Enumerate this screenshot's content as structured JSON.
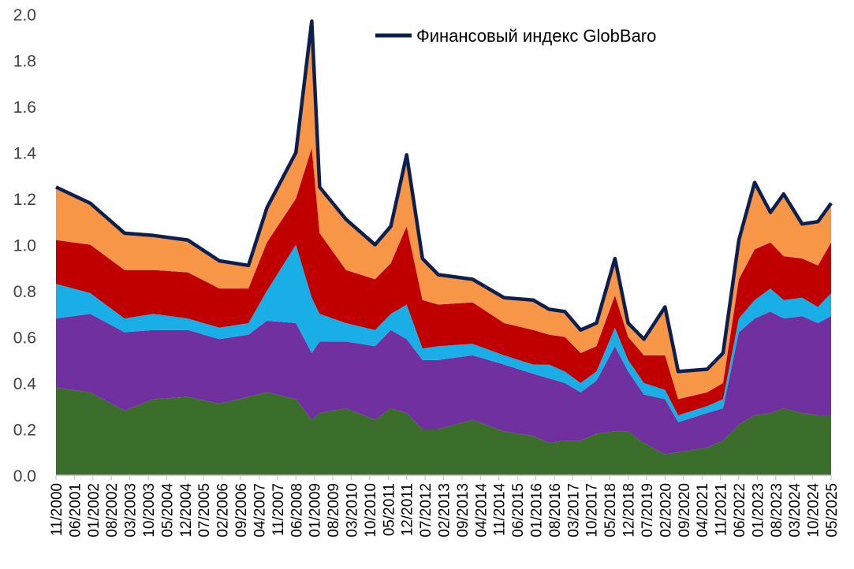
{
  "chart_data": {
    "type": "area",
    "title": "",
    "xlabel": "",
    "ylabel": "",
    "ylim": [
      0,
      2.0
    ],
    "yticks": [
      "0.0",
      "0.2",
      "0.4",
      "0.6",
      "0.8",
      "1.0",
      "1.2",
      "1.4",
      "1.6",
      "1.8",
      "2.0"
    ],
    "xticks": [
      "11/2000",
      "06/2001",
      "01/2002",
      "08/2002",
      "03/2003",
      "10/2003",
      "05/2004",
      "12/2004",
      "07/2005",
      "02/2006",
      "09/2006",
      "04/2007",
      "11/2007",
      "06/2008",
      "01/2009",
      "08/2009",
      "03/2010",
      "10/2010",
      "05/2011",
      "12/2011",
      "07/2012",
      "02/2013",
      "09/2013",
      "04/2014",
      "11/2014",
      "06/2015",
      "01/2016",
      "08/2016",
      "03/2017",
      "10/2017",
      "05/2018",
      "12/2018",
      "07/2019",
      "02/2020",
      "09/2020",
      "04/2021",
      "11/2021",
      "06/2022",
      "01/2023",
      "08/2023",
      "03/2024",
      "10/2024",
      "05/2025"
    ],
    "x_date_range": [
      "11/2000",
      "05/2025"
    ],
    "stack_colors": [
      "#3a6e2a",
      "#7030a0",
      "#1aaee6",
      "#c00000",
      "#f79646"
    ],
    "line_color": "#0d1f4f",
    "grid": false,
    "legend": {
      "position": "top",
      "label": "Финансовый индекс GlobBaro"
    },
    "dates": [
      "11/2000",
      "12/2001",
      "01/2003",
      "12/2003",
      "01/2005",
      "01/2006",
      "12/2006",
      "07/2007",
      "06/2008",
      "12/2008",
      "03/2009",
      "01/2010",
      "12/2010",
      "06/2011",
      "12/2011",
      "06/2012",
      "12/2012",
      "01/2014",
      "01/2015",
      "12/2015",
      "06/2016",
      "12/2016",
      "06/2017",
      "12/2017",
      "07/2018",
      "12/2018",
      "06/2019",
      "02/2020",
      "07/2020",
      "06/2021",
      "12/2021",
      "06/2022",
      "12/2022",
      "06/2023",
      "11/2023",
      "06/2024",
      "12/2024",
      "05/2025"
    ],
    "series": [
      {
        "values": [
          0.38,
          0.36,
          0.28,
          0.33,
          0.34,
          0.31,
          0.34,
          0.36,
          0.33,
          0.24,
          0.27,
          0.29,
          0.24,
          0.29,
          0.27,
          0.2,
          0.2,
          0.24,
          0.19,
          0.17,
          0.14,
          0.15,
          0.15,
          0.18,
          0.19,
          0.19,
          0.14,
          0.09,
          0.1,
          0.12,
          0.15,
          0.22,
          0.26,
          0.27,
          0.29,
          0.27,
          0.26,
          0.26
        ]
      },
      {
        "values": [
          0.3,
          0.34,
          0.34,
          0.3,
          0.29,
          0.28,
          0.27,
          0.31,
          0.33,
          0.29,
          0.31,
          0.29,
          0.32,
          0.34,
          0.32,
          0.3,
          0.3,
          0.28,
          0.29,
          0.27,
          0.28,
          0.25,
          0.21,
          0.23,
          0.37,
          0.26,
          0.21,
          0.24,
          0.13,
          0.15,
          0.14,
          0.4,
          0.42,
          0.44,
          0.39,
          0.42,
          0.4,
          0.43
        ]
      },
      {
        "values": [
          0.15,
          0.09,
          0.06,
          0.07,
          0.05,
          0.05,
          0.05,
          0.13,
          0.34,
          0.24,
          0.12,
          0.08,
          0.07,
          0.07,
          0.15,
          0.05,
          0.06,
          0.05,
          0.04,
          0.04,
          0.06,
          0.05,
          0.04,
          0.04,
          0.08,
          0.05,
          0.05,
          0.04,
          0.03,
          0.03,
          0.04,
          0.06,
          0.08,
          0.1,
          0.08,
          0.08,
          0.07,
          0.1
        ]
      },
      {
        "values": [
          0.19,
          0.21,
          0.21,
          0.19,
          0.2,
          0.17,
          0.15,
          0.21,
          0.2,
          0.65,
          0.35,
          0.23,
          0.22,
          0.22,
          0.34,
          0.21,
          0.18,
          0.18,
          0.14,
          0.15,
          0.13,
          0.15,
          0.13,
          0.11,
          0.14,
          0.1,
          0.12,
          0.15,
          0.07,
          0.06,
          0.07,
          0.17,
          0.22,
          0.2,
          0.19,
          0.17,
          0.18,
          0.22
        ]
      },
      {
        "values": [
          0.23,
          0.18,
          0.16,
          0.15,
          0.14,
          0.12,
          0.1,
          0.15,
          0.2,
          0.55,
          0.2,
          0.22,
          0.15,
          0.16,
          0.31,
          0.18,
          0.13,
          0.1,
          0.11,
          0.13,
          0.11,
          0.11,
          0.1,
          0.1,
          0.16,
          0.06,
          0.07,
          0.21,
          0.12,
          0.1,
          0.13,
          0.17,
          0.29,
          0.13,
          0.27,
          0.15,
          0.19,
          0.17
        ]
      }
    ]
  }
}
